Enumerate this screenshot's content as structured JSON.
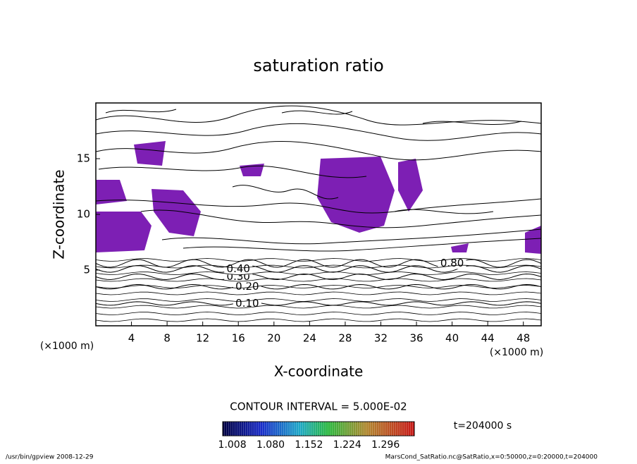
{
  "chart_data": {
    "type": "contour",
    "title": "saturation ratio",
    "x_label": "X-coordinate",
    "y_label": "Z-coordinate",
    "x_unit": "(×1000 m)",
    "y_unit": "(×1000 m)",
    "xlim": [
      0,
      50
    ],
    "ylim": [
      0,
      20
    ],
    "xticks": [
      4,
      8,
      12,
      16,
      20,
      24,
      28,
      32,
      36,
      40,
      44,
      48
    ],
    "yticks": [
      5,
      10,
      15
    ],
    "contours": [
      {
        "label": "0.10",
        "level": 0.1,
        "x": 17,
        "z": 2.0
      },
      {
        "label": "0.20",
        "level": 0.2,
        "x": 17,
        "z": 3.5
      },
      {
        "label": "0.30",
        "level": 0.3,
        "x": 16,
        "z": 4.4
      },
      {
        "label": "0.40",
        "level": 0.4,
        "x": 16,
        "z": 5.1
      },
      {
        "label": "0.80",
        "level": 0.8,
        "x": 40,
        "z": 5.6
      }
    ],
    "contour_interval": "CONTOUR INTERVAL = 5.000E-02",
    "time": "t=204000 s",
    "fill_color": "#7d1fb4",
    "colorbar": {
      "lim": [
        0.99,
        1.35
      ],
      "ticks": [
        1.008,
        {
          "value": 1.08,
          "label": "1.080"
        },
        1.152,
        1.224,
        1.296
      ]
    },
    "footer_left": "/usr/bin/gpview  2008-12-29",
    "footer_right": "MarsCond_SatRatio.nc@SatRatio,x=0:50000,z=0:20000,t=204000"
  }
}
